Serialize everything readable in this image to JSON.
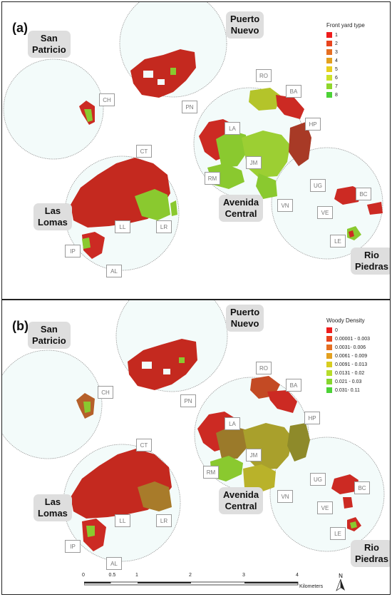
{
  "panels": [
    {
      "label": "(a)",
      "legend": {
        "title": "Front yard type",
        "items": [
          {
            "label": "1",
            "color": "#ee1c1c"
          },
          {
            "label": "2",
            "color": "#e8441e"
          },
          {
            "label": "3",
            "color": "#e56f22"
          },
          {
            "label": "4",
            "color": "#e3a01f"
          },
          {
            "label": "5",
            "color": "#e8cf1e"
          },
          {
            "label": "6",
            "color": "#cde12a"
          },
          {
            "label": "7",
            "color": "#8fd62c"
          },
          {
            "label": "8",
            "color": "#4cd236"
          }
        ]
      }
    },
    {
      "label": "(b)",
      "legend": {
        "title": "Woody Density",
        "items": [
          {
            "label": "0",
            "color": "#ee1c1c"
          },
          {
            "label": "0.00001 - 0.003",
            "color": "#e8441e"
          },
          {
            "label": "0.0031- 0.006",
            "color": "#e56f22"
          },
          {
            "label": "0.0061 - 0.009",
            "color": "#e3a01f"
          },
          {
            "label": "0.0091 - 0.013",
            "color": "#d8cd20"
          },
          {
            "label": "0.0131 - 0.02",
            "color": "#b7dd2b"
          },
          {
            "label": "0.021 - 0.03",
            "color": "#86d62d"
          },
          {
            "label": "0.031- 0.11",
            "color": "#4cd236"
          }
        ]
      }
    }
  ],
  "regions": {
    "san_patricio": [
      "San",
      "Patricio"
    ],
    "puerto_nuevo": [
      "Puerto",
      "Nuevo"
    ],
    "las_lomas": [
      "Las",
      "Lomas"
    ],
    "avenida_central": [
      "Avenida",
      "Central"
    ],
    "rio_piedras": [
      "Rio",
      "Piedras"
    ]
  },
  "codes": {
    "ch": "CH",
    "pn": "PN",
    "ro": "RO",
    "ba": "BA",
    "hp": "HP",
    "la": "LA",
    "jm": "JM",
    "rm": "RM",
    "ug": "UG",
    "vn": "VN",
    "bc": "BC",
    "ve": "VE",
    "le": "LE",
    "ct": "CT",
    "ll": "LL",
    "lr": "LR",
    "ip": "IP",
    "al": "AL"
  },
  "scale": {
    "ticks": [
      "0",
      "0.5",
      "1",
      "2",
      "3",
      "4"
    ],
    "tick_values": [
      0,
      0.5,
      1,
      2,
      3,
      4
    ],
    "unit": "Kilometers"
  },
  "north": "N",
  "colors": {
    "red": "#cc2a23",
    "green": "#8ac92f",
    "circle": "#9a9a9a"
  }
}
